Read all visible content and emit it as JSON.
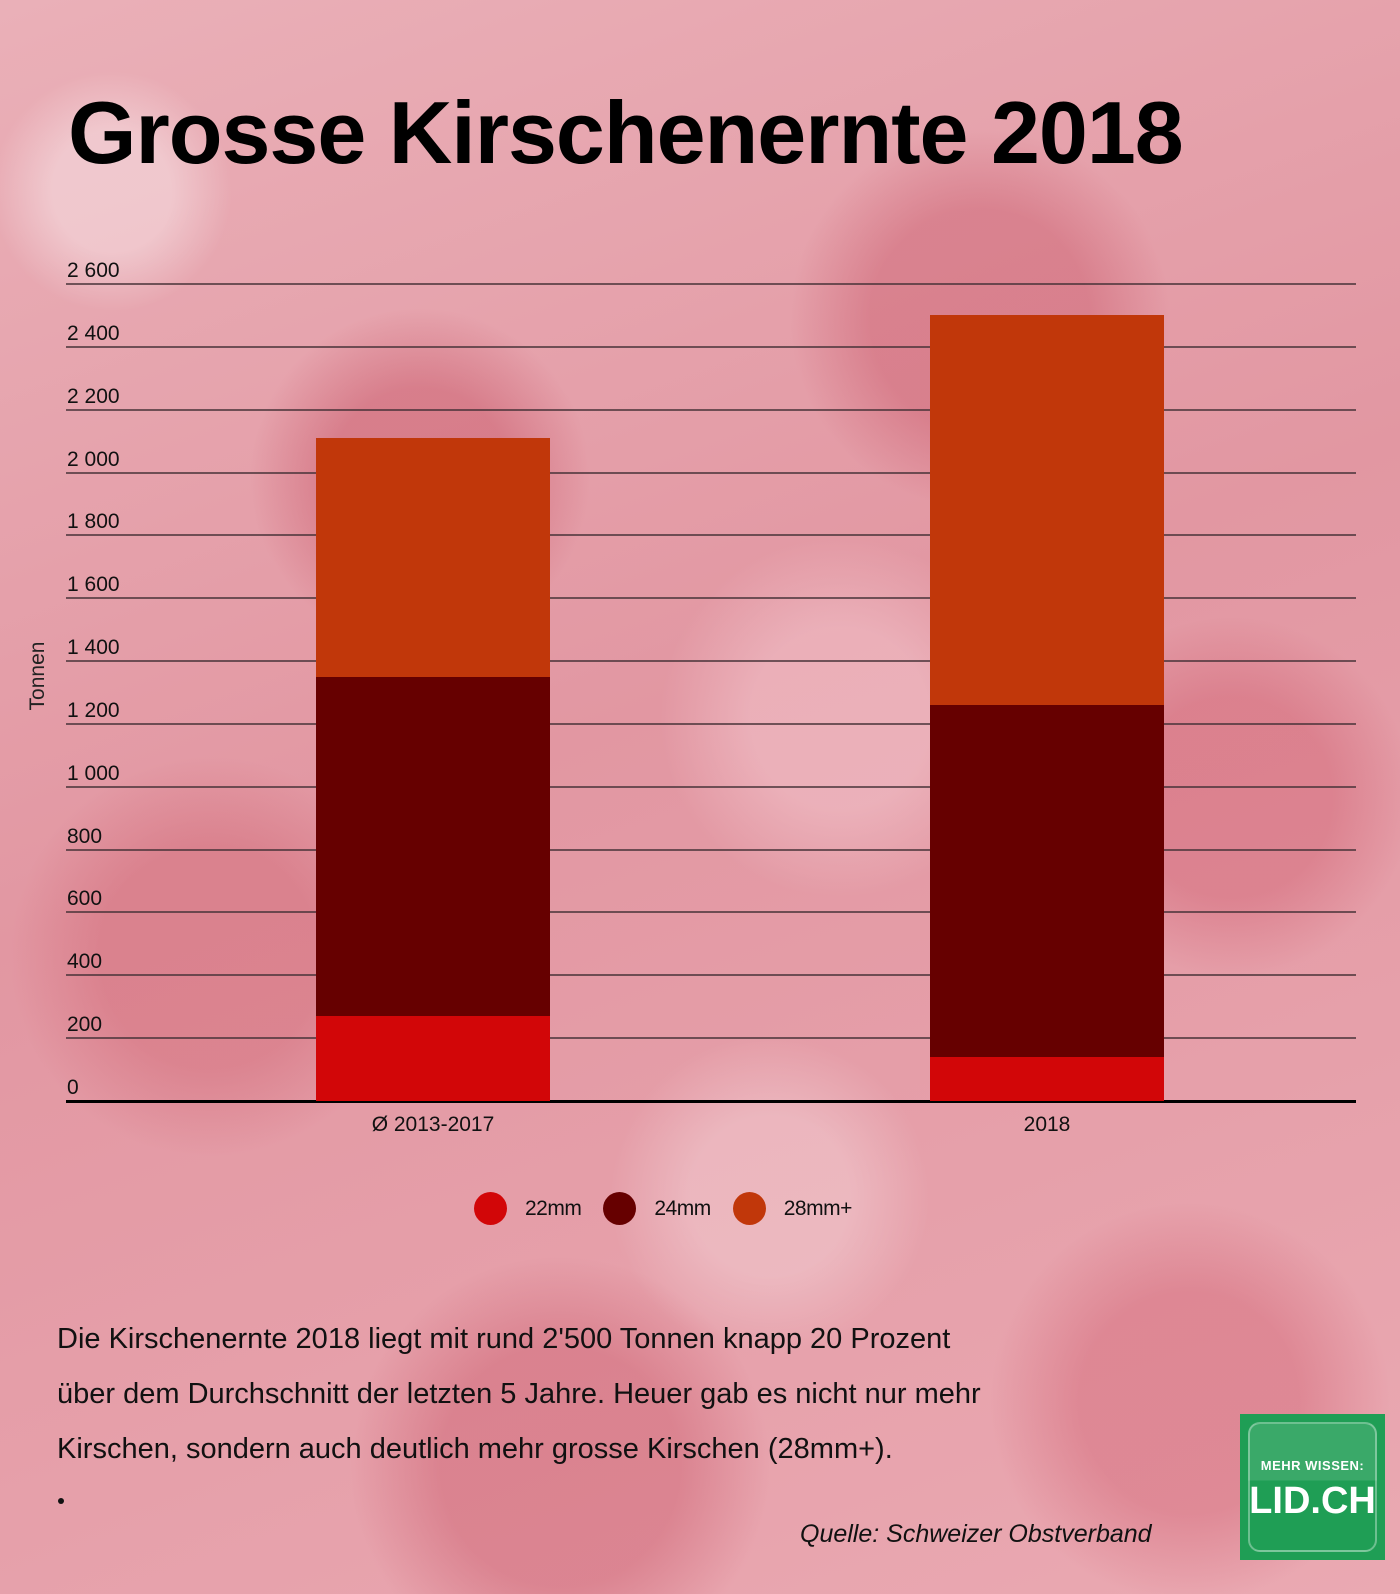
{
  "title": "Grosse Kirschenernte 2018",
  "y_axis_title": "Tonnen",
  "y_ticks": [
    "2 600",
    "2 400",
    "2 200",
    "2 000",
    "1 800",
    "1 600",
    "1 400",
    "1 200",
    "1 000",
    "800",
    "600",
    "400",
    "200",
    "0"
  ],
  "categories": [
    "Ø 2013-2017",
    "2018"
  ],
  "legend": [
    {
      "label": "22mm",
      "color": "#d20608"
    },
    {
      "label": "24mm",
      "color": "#660000"
    },
    {
      "label": "28mm+",
      "color": "#c1370a"
    }
  ],
  "body_text": [
    "Die Kirschenernte 2018 liegt mit rund 2'500 Tonnen knapp 20 Prozent",
    "über dem Durchschnitt der letzten 5 Jahre. Heuer gab es nicht nur mehr",
    "Kirschen, sondern auch deutlich mehr grosse Kirschen (28mm+)."
  ],
  "source": "Quelle: Schweizer Obstverband",
  "logo": {
    "small": "MEHR WISSEN:",
    "big": "LID.CH",
    "color": "#1f9e55"
  },
  "chart_data": {
    "type": "bar",
    "stacked": true,
    "title": "Grosse Kirschenernte 2018",
    "xlabel": "",
    "ylabel": "Tonnen",
    "ylim": [
      0,
      2600
    ],
    "ytick_step": 200,
    "grid": true,
    "legend_position": "bottom",
    "categories": [
      "Ø 2013-2017",
      "2018"
    ],
    "series": [
      {
        "name": "22mm",
        "color": "#d20608",
        "values": [
          270,
          140
        ]
      },
      {
        "name": "24mm",
        "color": "#660000",
        "values": [
          1080,
          1120
        ]
      },
      {
        "name": "28mm+",
        "color": "#c1370a",
        "values": [
          760,
          1240
        ]
      }
    ],
    "totals": [
      2110,
      2500
    ]
  }
}
